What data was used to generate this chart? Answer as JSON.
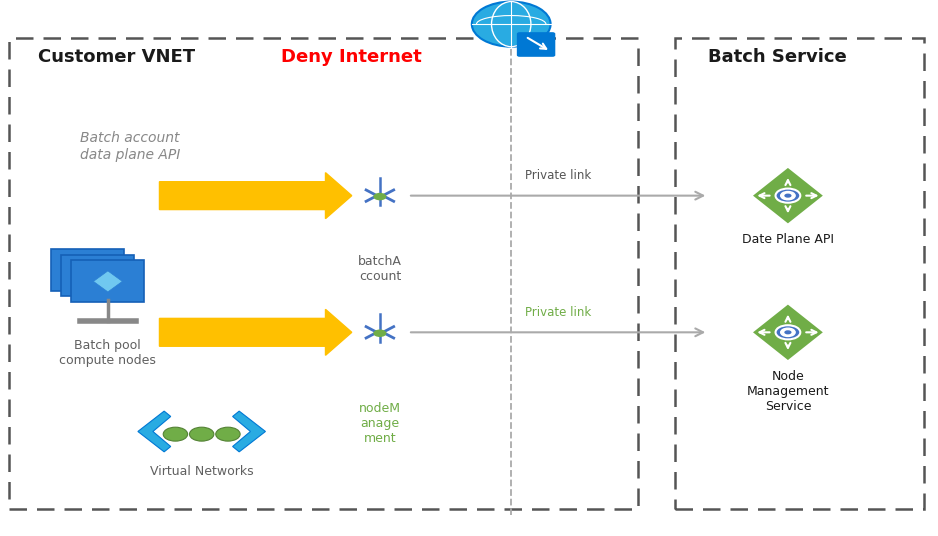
{
  "fig_width": 9.38,
  "fig_height": 5.36,
  "bg_color": "#ffffff",
  "title_customer": "Customer VNET",
  "title_batch": "Batch Service",
  "deny_internet_text": "Deny Internet",
  "deny_internet_color": "#ff0000",
  "private_link_1_text": "Private link",
  "private_link_2_text": "Private link",
  "private_link_2_color": "#70ad47",
  "batch_account_label": "batchA\nccount",
  "batch_account_label_color": "#606060",
  "node_mgmt_label": "nodeM\nanage\nment",
  "node_mgmt_label_color": "#70ad47",
  "batch_pool_label": "Batch pool\ncompute nodes",
  "batch_account_api_label": "Batch account\ndata plane API",
  "date_plane_api_label": "Date Plane API",
  "node_mgmt_service_label": "Node\nManagement\nService",
  "virtual_networks_label": "Virtual Networks",
  "arrow_color": "#ffc000",
  "connector_color": "#4472c4",
  "green_icon_color": "#70ad47",
  "blue_icon_color": "#4472c4",
  "gray_color": "#888888",
  "dark_color": "#1a1a1a",
  "text_gray": "#606060",
  "dashed_box_color": "#555555"
}
